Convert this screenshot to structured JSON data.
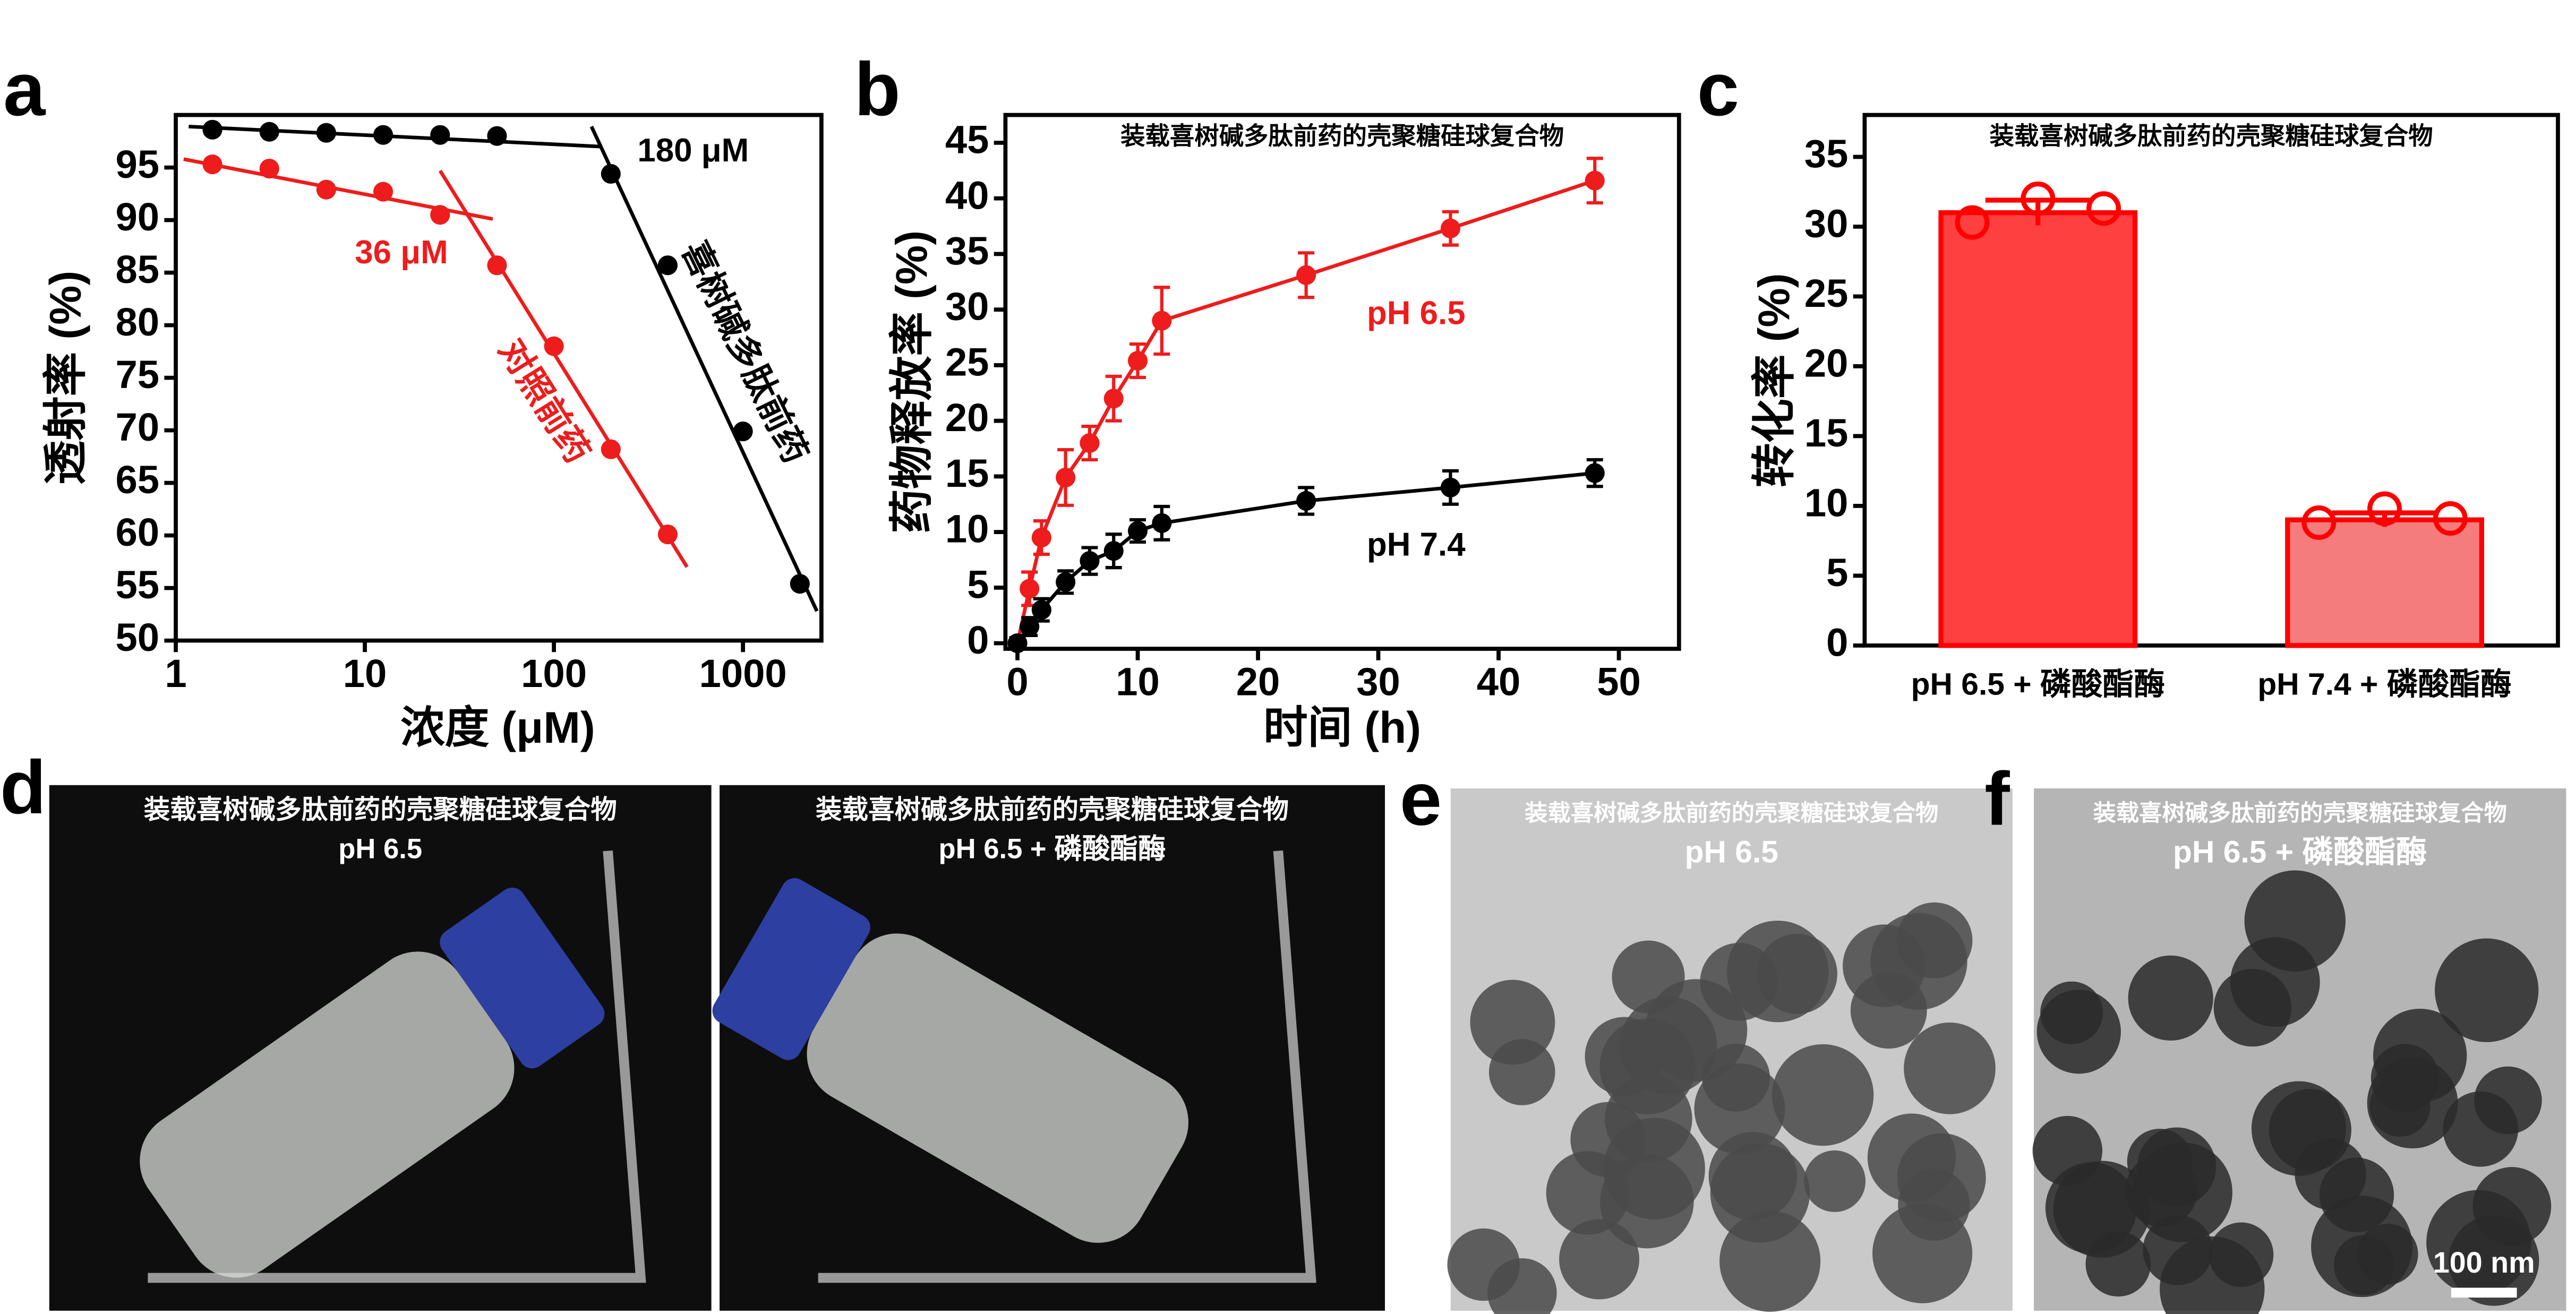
{
  "chart_data": [
    {
      "type": "scatter",
      "panel": "a",
      "xlabel": "浓度 (μM)",
      "ylabel": "透射率 (%)",
      "xscale": "log",
      "xlim": [
        1,
        2600
      ],
      "ylim": [
        50,
        100
      ],
      "xticks": [
        1,
        10,
        100,
        1000
      ],
      "yticks": [
        50,
        55,
        60,
        65,
        70,
        75,
        80,
        85,
        90,
        95
      ],
      "series": [
        {
          "name": "喜树碱多肽前药",
          "color": "#000000",
          "x": [
            1.5625,
            3.125,
            6.25,
            12.5,
            25,
            50,
            200,
            400,
            1000,
            2000
          ],
          "values": [
            98.6,
            98.4,
            98.3,
            98.1,
            98.1,
            98,
            94.4,
            85.7,
            69.9,
            55.4
          ],
          "fits": [
            {
              "x": [
                1.17,
                175
              ],
              "values": [
                98.9,
                97.0
              ]
            },
            {
              "x": [
                158,
                2460
              ],
              "values": [
                98.9,
                52.8
              ]
            }
          ]
        },
        {
          "name": "对照前药",
          "color": "#ee1c1c",
          "x": [
            1.5625,
            3.125,
            6.25,
            12.5,
            25,
            50,
            100,
            200,
            400
          ],
          "values": [
            95.3,
            94.9,
            92.9,
            92.7,
            90.5,
            85.7,
            78,
            68.2,
            60.1
          ],
          "fits": [
            {
              "x": [
                1.1,
                47.5
              ],
              "values": [
                95.8,
                90.1
              ]
            },
            {
              "x": [
                25,
                506
              ],
              "values": [
                94.7,
                57
              ]
            }
          ]
        }
      ],
      "annotations": [
        {
          "text": "180 μM",
          "color": "#000000"
        },
        {
          "text": "36 μM",
          "color": "#ee1c1c"
        }
      ]
    },
    {
      "type": "line",
      "panel": "b",
      "title": "装载喜树碱多肽前药的壳聚糖硅球复合物",
      "xlabel": "时间 (h)",
      "ylabel": "药物释放率 (%)",
      "xlim": [
        -1,
        55
      ],
      "ylim": [
        -0.5,
        47.5
      ],
      "xticks": [
        0,
        10,
        20,
        30,
        40,
        50
      ],
      "yticks": [
        0,
        5,
        10,
        15,
        20,
        25,
        30,
        35,
        40,
        45
      ],
      "series": [
        {
          "name": "pH 6.5",
          "color": "#ee1c1c",
          "x": [
            0,
            1,
            2,
            4,
            6,
            8,
            10,
            12,
            24,
            36,
            48
          ],
          "values": [
            0,
            4.9,
            9.5,
            14.9,
            18,
            22,
            25.4,
            29,
            33.1,
            37.3,
            41.6
          ],
          "errors": [
            0.5,
            1.5,
            1.5,
            2.5,
            1.5,
            2,
            1.5,
            3,
            2,
            1.5,
            2
          ]
        },
        {
          "name": "pH 7.4",
          "color": "#000000",
          "x": [
            0,
            1,
            2,
            4,
            6,
            8,
            10,
            12,
            24,
            36,
            48
          ],
          "values": [
            0,
            1.5,
            3,
            5.5,
            7.4,
            8.3,
            10.1,
            10.8,
            12.8,
            14,
            15.3
          ],
          "errors": [
            0.5,
            0.8,
            1,
            1,
            1.2,
            1.5,
            1,
            1.5,
            1.2,
            1.5,
            1.2
          ]
        }
      ]
    },
    {
      "type": "bar",
      "panel": "c",
      "title": "装载喜树碱多肽前药的壳聚糖硅球复合物",
      "ylabel": "转化率 (%)",
      "ylim": [
        0,
        38
      ],
      "yticks": [
        0,
        5,
        10,
        15,
        20,
        25,
        30,
        35
      ],
      "categories": [
        "pH 6.5 + 磷酸酯酶",
        "pH 7.4 + 磷酸酯酶"
      ],
      "values": [
        31,
        9
      ],
      "errors": [
        0.9,
        0.5
      ],
      "points": [
        [
          30.3,
          32,
          31.3
        ],
        [
          8.8,
          9.8,
          9.1
        ]
      ],
      "colors": [
        "#ff4040",
        "#f47c7c"
      ],
      "edgecolor": "#ff0000"
    }
  ],
  "images": [
    {
      "panel": "d",
      "title": "装载喜树碱多肽前药的壳聚糖硅球复合物",
      "subtitle": "pH 6.5"
    },
    {
      "title": "装载喜树碱多肽前药的壳聚糖硅球复合物",
      "subtitle": "pH 6.5 + 磷酸酯酶"
    },
    {
      "panel": "e",
      "title": "装载喜树碱多肽前药的壳聚糖硅球复合物",
      "subtitle": "pH 6.5"
    },
    {
      "panel": "f",
      "title": "装载喜树碱多肽前药的壳聚糖硅球复合物",
      "subtitle": "pH 6.5 + 磷酸酯酶",
      "scale_bar": "100 nm"
    }
  ]
}
